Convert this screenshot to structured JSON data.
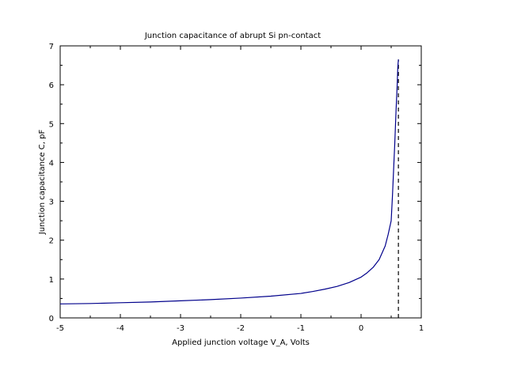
{
  "chart_data": {
    "type": "line",
    "title": "Junction capacitance of abrupt Si pn-contact",
    "xlabel": "Applied junction voltage V_A, Volts",
    "ylabel": "Junction capacitance C, pF",
    "xlim": [
      -5,
      1
    ],
    "ylim": [
      0,
      7
    ],
    "xticks": [
      -5,
      -4,
      -3,
      -2,
      -1,
      0,
      1
    ],
    "yticks": [
      0,
      1,
      2,
      3,
      4,
      5,
      6,
      7
    ],
    "xtick_labels": [
      "-5",
      "-4",
      "-3",
      "-2",
      "-1",
      "0",
      "1"
    ],
    "ytick_labels": [
      "0",
      "1",
      "2",
      "3",
      "4",
      "5",
      "6",
      "7"
    ],
    "grid": false,
    "series": [
      {
        "color": "#00008b",
        "style": "solid",
        "x": [
          -5,
          -4.5,
          -4,
          -3.5,
          -3,
          -2.5,
          -2,
          -1.5,
          -1,
          -0.8,
          -0.6,
          -0.4,
          -0.2,
          0,
          0.1,
          0.2,
          0.3,
          0.4,
          0.45,
          0.5,
          0.52,
          0.54,
          0.56,
          0.58,
          0.6,
          0.61,
          0.62
        ],
        "y": [
          0.36,
          0.37,
          0.39,
          0.41,
          0.44,
          0.47,
          0.51,
          0.56,
          0.63,
          0.68,
          0.74,
          0.81,
          0.91,
          1.05,
          1.16,
          1.3,
          1.5,
          1.85,
          2.15,
          2.5,
          3.1,
          3.8,
          4.5,
          5.3,
          6.0,
          6.45,
          6.65
        ]
      }
    ],
    "vline": {
      "x": 0.62,
      "y_from": 0,
      "y_to": 6.65,
      "style": "dashed",
      "color": "#000000"
    }
  }
}
